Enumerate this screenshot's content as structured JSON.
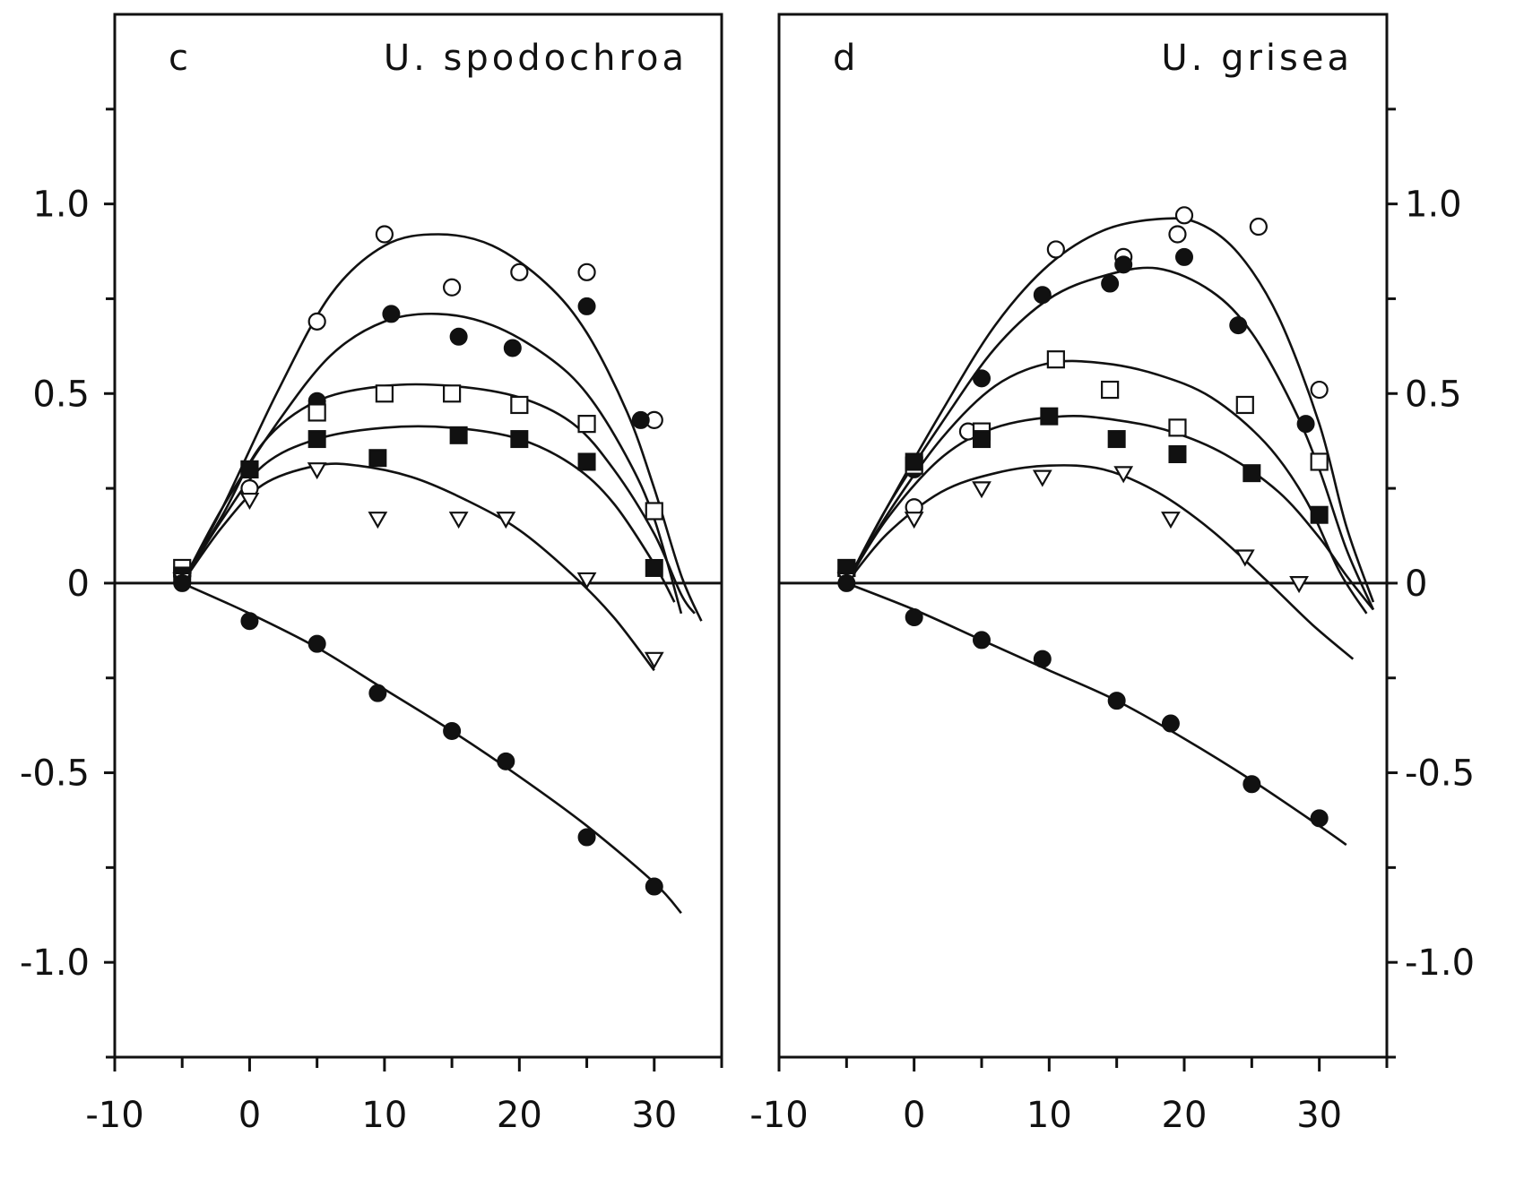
{
  "chart_data": [
    {
      "type": "scatter",
      "panel_letter": "c",
      "title": "U. spodochroa",
      "xlabel": "",
      "ylabel": "",
      "xlim": [
        -10,
        35
      ],
      "ylim": [
        -1.25,
        1.5
      ],
      "x_ticks": [
        -10,
        0,
        10,
        20,
        30
      ],
      "x_tick_labels": [
        "-10",
        "0",
        "10",
        "20",
        "30"
      ],
      "y_ticks": [
        -1.0,
        -0.5,
        0,
        0.5,
        1.0
      ],
      "y_tick_labels": [
        "-1.0",
        "-0.5",
        "0",
        "0.5",
        "1.0"
      ],
      "y_axis_side": "left",
      "grid": false,
      "series": [
        {
          "marker": "open-circle",
          "points": [
            [
              -5,
              0.02
            ],
            [
              0,
              0.25
            ],
            [
              5,
              0.69
            ],
            [
              10,
              0.92
            ],
            [
              15,
              0.78
            ],
            [
              20,
              0.82
            ],
            [
              25,
              0.82
            ],
            [
              30,
              0.43
            ]
          ],
          "curve": [
            [
              -5,
              0
            ],
            [
              -2,
              0.2
            ],
            [
              2,
              0.5
            ],
            [
              6,
              0.76
            ],
            [
              10,
              0.89
            ],
            [
              14,
              0.92
            ],
            [
              18,
              0.89
            ],
            [
              22,
              0.79
            ],
            [
              25,
              0.66
            ],
            [
              28,
              0.45
            ],
            [
              30,
              0.25
            ],
            [
              32,
              0.02
            ],
            [
              33.5,
              -0.1
            ]
          ]
        },
        {
          "marker": "filled-circle",
          "points": [
            [
              -5,
              0.03
            ],
            [
              0,
              0.3
            ],
            [
              5,
              0.48
            ],
            [
              10.5,
              0.71
            ],
            [
              15.5,
              0.65
            ],
            [
              19.5,
              0.62
            ],
            [
              25,
              0.73
            ],
            [
              29,
              0.43
            ]
          ],
          "curve": [
            [
              -5,
              0
            ],
            [
              -2,
              0.2
            ],
            [
              2,
              0.42
            ],
            [
              6,
              0.6
            ],
            [
              10,
              0.69
            ],
            [
              14,
              0.71
            ],
            [
              18,
              0.68
            ],
            [
              22,
              0.6
            ],
            [
              25,
              0.5
            ],
            [
              28,
              0.33
            ],
            [
              30,
              0.17
            ],
            [
              32,
              -0.08
            ]
          ]
        },
        {
          "marker": "open-square",
          "points": [
            [
              -5,
              0.04
            ],
            [
              0,
              0.3
            ],
            [
              5,
              0.45
            ],
            [
              10,
              0.5
            ],
            [
              15,
              0.5
            ],
            [
              20,
              0.47
            ],
            [
              25,
              0.42
            ],
            [
              30,
              0.19
            ]
          ],
          "curve": [
            [
              -5,
              0
            ],
            [
              -2,
              0.18
            ],
            [
              1,
              0.37
            ],
            [
              5,
              0.48
            ],
            [
              10,
              0.52
            ],
            [
              15,
              0.52
            ],
            [
              20,
              0.49
            ],
            [
              24,
              0.42
            ],
            [
              27,
              0.3
            ],
            [
              30,
              0.13
            ],
            [
              32,
              -0.03
            ],
            [
              33,
              -0.08
            ]
          ]
        },
        {
          "marker": "filled-square",
          "points": [
            [
              -5,
              0.02
            ],
            [
              0,
              0.3
            ],
            [
              5,
              0.38
            ],
            [
              9.5,
              0.33
            ],
            [
              15.5,
              0.39
            ],
            [
              20,
              0.38
            ],
            [
              25,
              0.32
            ],
            [
              30,
              0.04
            ]
          ],
          "curve": [
            [
              -5,
              0
            ],
            [
              -2,
              0.17
            ],
            [
              1,
              0.31
            ],
            [
              5,
              0.38
            ],
            [
              10,
              0.41
            ],
            [
              15,
              0.41
            ],
            [
              20,
              0.38
            ],
            [
              24,
              0.31
            ],
            [
              27,
              0.21
            ],
            [
              30,
              0.05
            ],
            [
              31.5,
              -0.05
            ]
          ]
        },
        {
          "marker": "open-triangle",
          "points": [
            [
              -5,
              0.01
            ],
            [
              0,
              0.22
            ],
            [
              5,
              0.3
            ],
            [
              9.5,
              0.17
            ],
            [
              15.5,
              0.17
            ],
            [
              19,
              0.17
            ],
            [
              25,
              0.01
            ],
            [
              30,
              -0.2
            ]
          ],
          "curve": [
            [
              -5,
              0
            ],
            [
              -2,
              0.15
            ],
            [
              1,
              0.26
            ],
            [
              5,
              0.31
            ],
            [
              8,
              0.31
            ],
            [
              12,
              0.28
            ],
            [
              16,
              0.22
            ],
            [
              20,
              0.14
            ],
            [
              24,
              0.02
            ],
            [
              27,
              -0.09
            ],
            [
              30,
              -0.23
            ]
          ]
        },
        {
          "marker": "filled-circle",
          "points": [
            [
              -5,
              0
            ],
            [
              0,
              -0.1
            ],
            [
              5,
              -0.16
            ],
            [
              9.5,
              -0.29
            ],
            [
              15,
              -0.39
            ],
            [
              19,
              -0.47
            ],
            [
              25,
              -0.67
            ],
            [
              30,
              -0.8
            ]
          ],
          "curve": [
            [
              -5,
              0
            ],
            [
              0,
              -0.08
            ],
            [
              5,
              -0.17
            ],
            [
              10,
              -0.28
            ],
            [
              15,
              -0.39
            ],
            [
              20,
              -0.51
            ],
            [
              25,
              -0.64
            ],
            [
              30,
              -0.79
            ],
            [
              32,
              -0.87
            ]
          ]
        }
      ]
    },
    {
      "type": "scatter",
      "panel_letter": "d",
      "title": "U. grisea",
      "xlabel": "",
      "ylabel": "",
      "xlim": [
        -10,
        35
      ],
      "ylim": [
        -1.25,
        1.5
      ],
      "x_ticks": [
        -10,
        0,
        10,
        20,
        30
      ],
      "x_tick_labels": [
        "-10",
        "0",
        "10",
        "20",
        "30"
      ],
      "y_ticks": [
        -1.0,
        -0.5,
        0,
        0.5,
        1.0
      ],
      "y_tick_labels": [
        "-1.0",
        "-0.5",
        "0",
        "0.5",
        "1.0"
      ],
      "y_axis_side": "right",
      "grid": false,
      "series": [
        {
          "marker": "open-circle",
          "points": [
            [
              -5,
              0.03
            ],
            [
              0,
              0.2
            ],
            [
              4,
              0.4
            ],
            [
              10.5,
              0.88
            ],
            [
              15.5,
              0.86
            ],
            [
              19.5,
              0.92
            ],
            [
              20,
              0.97
            ],
            [
              25.5,
              0.94
            ],
            [
              30,
              0.51
            ]
          ],
          "curve": [
            [
              -5,
              0
            ],
            [
              -2,
              0.2
            ],
            [
              2,
              0.45
            ],
            [
              6,
              0.68
            ],
            [
              10,
              0.84
            ],
            [
              14,
              0.93
            ],
            [
              18,
              0.96
            ],
            [
              21,
              0.95
            ],
            [
              24,
              0.87
            ],
            [
              27,
              0.7
            ],
            [
              30,
              0.42
            ],
            [
              32,
              0.15
            ],
            [
              34,
              -0.05
            ]
          ]
        },
        {
          "marker": "filled-circle",
          "points": [
            [
              -5,
              0.03
            ],
            [
              0,
              0.3
            ],
            [
              5,
              0.54
            ],
            [
              9.5,
              0.76
            ],
            [
              14.5,
              0.79
            ],
            [
              15.5,
              0.84
            ],
            [
              20,
              0.86
            ],
            [
              24,
              0.68
            ],
            [
              29,
              0.42
            ]
          ],
          "curve": [
            [
              -5,
              0
            ],
            [
              -2,
              0.2
            ],
            [
              2,
              0.42
            ],
            [
              6,
              0.62
            ],
            [
              10,
              0.75
            ],
            [
              14,
              0.81
            ],
            [
              18,
              0.83
            ],
            [
              22,
              0.77
            ],
            [
              25,
              0.66
            ],
            [
              28,
              0.47
            ],
            [
              30,
              0.3
            ],
            [
              32,
              0.09
            ],
            [
              34,
              -0.07
            ]
          ]
        },
        {
          "marker": "open-square",
          "points": [
            [
              -5,
              0.04
            ],
            [
              0,
              0.31
            ],
            [
              5,
              0.4
            ],
            [
              10.5,
              0.59
            ],
            [
              14.5,
              0.51
            ],
            [
              19.5,
              0.41
            ],
            [
              24.5,
              0.47
            ],
            [
              30,
              0.32
            ]
          ],
          "curve": [
            [
              -5,
              0
            ],
            [
              -2,
              0.18
            ],
            [
              2,
              0.38
            ],
            [
              6,
              0.52
            ],
            [
              10,
              0.58
            ],
            [
              14,
              0.58
            ],
            [
              18,
              0.55
            ],
            [
              22,
              0.49
            ],
            [
              26,
              0.37
            ],
            [
              29,
              0.22
            ],
            [
              31.5,
              0.03
            ],
            [
              33.5,
              -0.08
            ]
          ]
        },
        {
          "marker": "filled-square",
          "points": [
            [
              -5,
              0.04
            ],
            [
              0,
              0.32
            ],
            [
              5,
              0.38
            ],
            [
              10,
              0.44
            ],
            [
              15,
              0.38
            ],
            [
              19.5,
              0.34
            ],
            [
              25,
              0.29
            ],
            [
              30,
              0.18
            ]
          ],
          "curve": [
            [
              -5,
              0
            ],
            [
              -2,
              0.17
            ],
            [
              2,
              0.33
            ],
            [
              6,
              0.41
            ],
            [
              11,
              0.44
            ],
            [
              15,
              0.43
            ],
            [
              19,
              0.4
            ],
            [
              23,
              0.34
            ],
            [
              27,
              0.24
            ],
            [
              30,
              0.12
            ],
            [
              32,
              0.02
            ],
            [
              34,
              -0.07
            ]
          ]
        },
        {
          "marker": "open-triangle",
          "points": [
            [
              -5,
              0.01
            ],
            [
              0,
              0.17
            ],
            [
              5,
              0.25
            ],
            [
              9.5,
              0.28
            ],
            [
              15.5,
              0.29
            ],
            [
              19,
              0.17
            ],
            [
              24.5,
              0.07
            ],
            [
              28.5,
              0
            ]
          ],
          "curve": [
            [
              -5,
              0
            ],
            [
              -2,
              0.13
            ],
            [
              2,
              0.24
            ],
            [
              6,
              0.29
            ],
            [
              10,
              0.31
            ],
            [
              14,
              0.3
            ],
            [
              18,
              0.24
            ],
            [
              22,
              0.14
            ],
            [
              26,
              0.01
            ],
            [
              29.5,
              -0.11
            ],
            [
              32.5,
              -0.2
            ]
          ]
        },
        {
          "marker": "filled-circle",
          "points": [
            [
              -5,
              0
            ],
            [
              0,
              -0.09
            ],
            [
              5,
              -0.15
            ],
            [
              9.5,
              -0.2
            ],
            [
              15,
              -0.31
            ],
            [
              19,
              -0.37
            ],
            [
              25,
              -0.53
            ],
            [
              30,
              -0.62
            ]
          ],
          "curve": [
            [
              -5,
              0
            ],
            [
              0,
              -0.07
            ],
            [
              5,
              -0.15
            ],
            [
              10,
              -0.23
            ],
            [
              15,
              -0.31
            ],
            [
              20,
              -0.41
            ],
            [
              25,
              -0.52
            ],
            [
              30,
              -0.64
            ],
            [
              32,
              -0.69
            ]
          ]
        }
      ]
    }
  ]
}
